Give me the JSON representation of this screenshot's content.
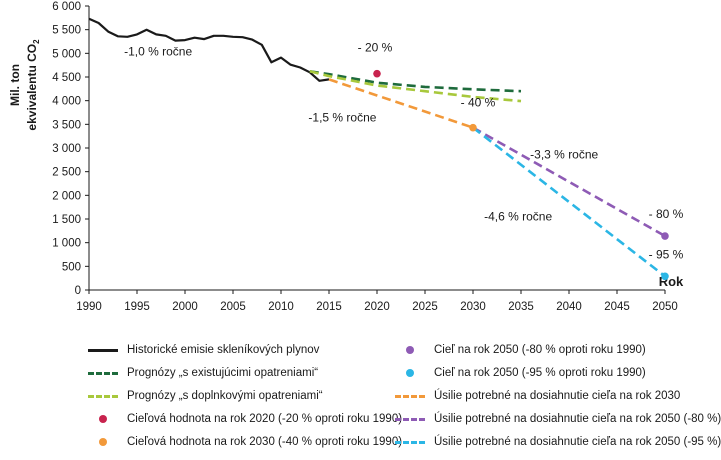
{
  "chart_data": {
    "type": "line",
    "ylabel_lines": [
      "Mil. ton",
      "ekvivalentu CO",
      "2"
    ],
    "xlabel": "Rok",
    "xlim": [
      1990,
      2050
    ],
    "ylim": [
      0,
      6000
    ],
    "x_ticks": [
      1990,
      1995,
      2000,
      2005,
      2010,
      2015,
      2020,
      2025,
      2030,
      2035,
      2040,
      2045,
      2050
    ],
    "y_ticks": [
      0,
      500,
      1000,
      1500,
      2000,
      2500,
      3000,
      3500,
      4000,
      4500,
      5000,
      5500,
      6000
    ],
    "y_tick_labels": [
      "0",
      "500",
      "1 000",
      "1 500",
      "2 000",
      "2 500",
      "3 000",
      "3 500",
      "4 000",
      "4 500",
      "5 000",
      "5 500",
      "6 000"
    ],
    "grid": false,
    "legend_position": "bottom",
    "series": [
      {
        "name": "Historické emisie skleníkových plynov",
        "style": "solid",
        "color": "#1a1a1a",
        "points": [
          [
            1990,
            5730
          ],
          [
            1991,
            5640
          ],
          [
            1992,
            5460
          ],
          [
            1993,
            5360
          ],
          [
            1994,
            5350
          ],
          [
            1995,
            5400
          ],
          [
            1996,
            5500
          ],
          [
            1997,
            5400
          ],
          [
            1998,
            5370
          ],
          [
            1999,
            5270
          ],
          [
            2000,
            5280
          ],
          [
            2001,
            5330
          ],
          [
            2002,
            5300
          ],
          [
            2003,
            5370
          ],
          [
            2004,
            5370
          ],
          [
            2005,
            5350
          ],
          [
            2006,
            5340
          ],
          [
            2007,
            5290
          ],
          [
            2008,
            5180
          ],
          [
            2009,
            4810
          ],
          [
            2010,
            4910
          ],
          [
            2011,
            4760
          ],
          [
            2012,
            4700
          ],
          [
            2013,
            4600
          ],
          [
            2014,
            4420
          ],
          [
            2015,
            4450
          ]
        ]
      },
      {
        "name": "Prognózy „s existujúcimi opatreniami“",
        "style": "dashed",
        "color": "#1e6b3c",
        "points": [
          [
            2013,
            4620
          ],
          [
            2015,
            4560
          ],
          [
            2020,
            4380
          ],
          [
            2025,
            4290
          ],
          [
            2030,
            4240
          ],
          [
            2035,
            4200
          ]
        ]
      },
      {
        "name": "Prognózy „s doplnkovými opatreniami“",
        "style": "dashed",
        "color": "#a8c83c",
        "points": [
          [
            2013,
            4620
          ],
          [
            2015,
            4520
          ],
          [
            2020,
            4320
          ],
          [
            2025,
            4200
          ],
          [
            2030,
            4080
          ],
          [
            2035,
            3990
          ]
        ]
      },
      {
        "name": "Úsilie potrebné na dosiahnutie cieľa na rok 2030",
        "style": "dashed",
        "color": "#f2993a",
        "points": [
          [
            2015,
            4450
          ],
          [
            2030,
            3430
          ]
        ]
      },
      {
        "name": "Úsilie potrebné na dosiahnutie cieľa na rok 2050 (-80 %)",
        "style": "dashed",
        "color": "#8e5bb5",
        "points": [
          [
            2030,
            3430
          ],
          [
            2050,
            1140
          ]
        ]
      },
      {
        "name": "Úsilie potrebné na dosiahnutie cieľa na rok 2050 (-95 %)",
        "style": "dashed",
        "color": "#2bb6e5",
        "points": [
          [
            2030,
            3430
          ],
          [
            2050,
            290
          ]
        ]
      }
    ],
    "targets": [
      {
        "name": "Cieľová hodnota na rok 2020 (-20 % oproti roku 1990)",
        "x": 2020,
        "y": 4570,
        "color": "#c8234e",
        "label": "- 20 %",
        "label_dx": -2,
        "label_dy": 22
      },
      {
        "name": "Cieľová hodnota na rok 2030 (-40 % oproti roku 1990)",
        "x": 2030,
        "y": 3430,
        "color": "#f2993a",
        "label": "- 40 %",
        "label_dx": 5,
        "label_dy": 21
      },
      {
        "name": "Cieľ na rok 2050 (-80 % oproti roku 1990)",
        "x": 2050,
        "y": 1140,
        "color": "#8e5bb5",
        "label": "- 80 %",
        "label_dx": 1,
        "label_dy": 18
      },
      {
        "name": "Cieľ na rok 2050 (-95 % oproti roku 1990)",
        "x": 2050,
        "y": 290,
        "color": "#2bb6e5",
        "label": "- 95 %",
        "label_dx": 1,
        "label_dy": 18
      }
    ],
    "annotations": [
      {
        "text": "-1,0 % ročne",
        "x": 1997.2,
        "y": 4950
      },
      {
        "text": "-1,5 % ročne",
        "x": 2016.4,
        "y": 3560
      },
      {
        "text": "-3,3 % ročne",
        "x": 2039.5,
        "y": 2780
      },
      {
        "text": "-4,6 % ročne",
        "x": 2034.7,
        "y": 1470
      }
    ]
  },
  "legend": {
    "left_column": [
      {
        "label": "Historické emisie skleníkových plynov",
        "kind": "line",
        "style": "solid",
        "color": "#1a1a1a"
      },
      {
        "label": "Prognózy „s existujúcimi opatreniami“",
        "kind": "line",
        "style": "dashed",
        "color": "#1e6b3c"
      },
      {
        "label": "Prognózy „s doplnkovými opatreniami“",
        "kind": "line",
        "style": "dashed",
        "color": "#a8c83c"
      },
      {
        "label": "Cieľová hodnota na rok 2020 (-20 % oproti roku 1990)",
        "kind": "dot",
        "color": "#c8234e"
      },
      {
        "label": "Cieľová hodnota na rok 2030 (-40 % oproti roku 1990)",
        "kind": "dot",
        "color": "#f2993a"
      }
    ],
    "right_column": [
      {
        "label": "Cieľ na rok 2050 (-80 % oproti roku 1990)",
        "kind": "dot",
        "color": "#8e5bb5"
      },
      {
        "label": "Cieľ na rok 2050 (-95 % oproti roku 1990)",
        "kind": "dot",
        "color": "#2bb6e5"
      },
      {
        "label": "Úsilie potrebné na dosiahnutie cieľa na rok 2030",
        "kind": "line",
        "style": "dashed",
        "color": "#f2993a"
      },
      {
        "label": "Úsilie potrebné na dosiahnutie cieľa na rok 2050 (-80 %)",
        "kind": "line",
        "style": "dashed",
        "color": "#8e5bb5"
      },
      {
        "label": "Úsilie potrebné na dosiahnutie cieľa na rok 2050 (-95 %)",
        "kind": "line",
        "style": "dashed",
        "color": "#2bb6e5"
      }
    ]
  }
}
